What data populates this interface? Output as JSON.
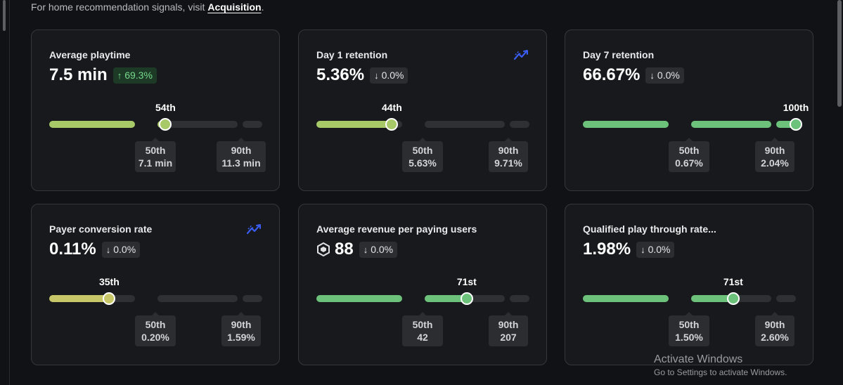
{
  "notice": {
    "text": "For home recommendation signals, visit ",
    "link": "Acquisition",
    "suffix": "."
  },
  "colors": {
    "green": "#6cc27b",
    "lime": "#a8c968",
    "yellow": "#c7c76a",
    "trend_icon": "#3a5cf0",
    "delta_up": "#76d98c"
  },
  "cards": [
    {
      "title": "Average playtime",
      "value": "7.5 min",
      "delta": {
        "text": "69.3%",
        "direction": "up"
      },
      "trend_icon": false,
      "percentile_label": "54th",
      "percentile": 54,
      "color": "lime",
      "p50": {
        "label": "50th",
        "value": "7.1 min"
      },
      "p90": {
        "label": "90th",
        "value": "11.3 min"
      }
    },
    {
      "title": "Day 1 retention",
      "value": "5.36%",
      "delta": {
        "text": "0.0%",
        "direction": "down"
      },
      "trend_icon": true,
      "percentile_label": "44th",
      "percentile": 44,
      "color": "lime",
      "p50": {
        "label": "50th",
        "value": "5.63%"
      },
      "p90": {
        "label": "90th",
        "value": "9.71%"
      }
    },
    {
      "title": "Day 7 retention",
      "value": "66.67%",
      "delta": {
        "text": "0.0%",
        "direction": "down"
      },
      "trend_icon": false,
      "percentile_label": "100th",
      "percentile": 100,
      "color": "green",
      "p50": {
        "label": "50th",
        "value": "0.67%"
      },
      "p90": {
        "label": "90th",
        "value": "2.04%"
      }
    },
    {
      "title": "Payer conversion rate",
      "value": "0.11%",
      "delta": {
        "text": "0.0%",
        "direction": "down"
      },
      "trend_icon": true,
      "percentile_label": "35th",
      "percentile": 35,
      "color": "yellow",
      "p50": {
        "label": "50th",
        "value": "0.20%"
      },
      "p90": {
        "label": "90th",
        "value": "1.59%"
      }
    },
    {
      "title": "Average revenue per paying users",
      "value": "88",
      "robux": true,
      "delta": {
        "text": "0.0%",
        "direction": "down"
      },
      "trend_icon": false,
      "percentile_label": "71st",
      "percentile": 71,
      "color": "green",
      "p50": {
        "label": "50th",
        "value": "42"
      },
      "p90": {
        "label": "90th",
        "value": "207"
      }
    },
    {
      "title": "Qualified play through rate...",
      "value": "1.98%",
      "delta": {
        "text": "0.0%",
        "direction": "down"
      },
      "trend_icon": false,
      "percentile_label": "71st",
      "percentile": 71,
      "color": "green",
      "p50": {
        "label": "50th",
        "value": "1.50%"
      },
      "p90": {
        "label": "90th",
        "value": "2.60%"
      }
    }
  ],
  "watermark": {
    "line1": "Activate Windows",
    "line2": "Go to Settings to activate Windows."
  }
}
